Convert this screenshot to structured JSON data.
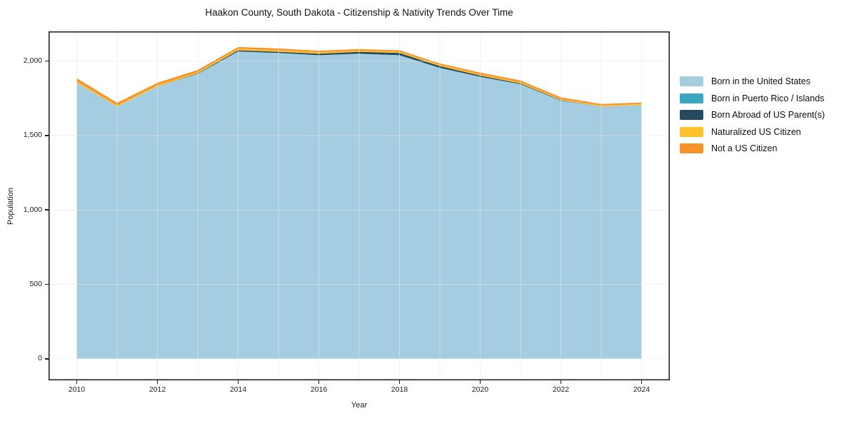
{
  "title": "Haakon County, South Dakota - Citizenship & Nativity Trends Over Time",
  "axes": {
    "x_label": "Year",
    "y_label": "Population",
    "x_ticks": [
      {
        "value": 2010,
        "label": "2010"
      },
      {
        "value": 2012,
        "label": "2012"
      },
      {
        "value": 2014,
        "label": "2014"
      },
      {
        "value": 2016,
        "label": "2016"
      },
      {
        "value": 2018,
        "label": "2018"
      },
      {
        "value": 2020,
        "label": "2020"
      },
      {
        "value": 2022,
        "label": "2022"
      },
      {
        "value": 2024,
        "label": "2024"
      }
    ],
    "y_ticks": [
      {
        "value": 0,
        "label": "0"
      },
      {
        "value": 500,
        "label": "500"
      },
      {
        "value": 1000,
        "label": "1,000"
      },
      {
        "value": 1500,
        "label": "1,500"
      },
      {
        "value": 2000,
        "label": "2,000"
      }
    ]
  },
  "chart_data": {
    "type": "area",
    "stacked": true,
    "title": "Haakon County, South Dakota - Citizenship & Nativity Trends Over Time",
    "xlabel": "Year",
    "ylabel": "Population",
    "x": [
      2010,
      2011,
      2012,
      2013,
      2014,
      2015,
      2016,
      2017,
      2018,
      2019,
      2020,
      2021,
      2022,
      2023,
      2024
    ],
    "xlim": [
      2009.3,
      2024.7
    ],
    "ylim": [
      -145,
      2200
    ],
    "grid": true,
    "legend_position": "right-outside",
    "frame_color": "#1a1a1a",
    "grid_color": "#e9e9e9",
    "series": [
      {
        "name": "Born in the United States",
        "color": "#a4cde2",
        "values": [
          1855,
          1695,
          1830,
          1915,
          2065,
          2055,
          2040,
          2050,
          2040,
          1955,
          1895,
          1845,
          1735,
          1695,
          1705
        ]
      },
      {
        "name": "Born in Puerto Rico / Islands",
        "color": "#3ba6bf",
        "values": [
          0,
          0,
          0,
          0,
          0,
          0,
          0,
          0,
          0,
          0,
          0,
          0,
          0,
          0,
          0
        ]
      },
      {
        "name": "Born Abroad of US Parent(s)",
        "color": "#254a5e",
        "values": [
          0,
          0,
          0,
          3,
          8,
          8,
          10,
          13,
          15,
          12,
          8,
          5,
          3,
          0,
          0
        ]
      },
      {
        "name": "Naturalized US Citizen",
        "color": "#fcc22c",
        "values": [
          10,
          8,
          8,
          8,
          10,
          10,
          10,
          8,
          8,
          8,
          8,
          8,
          7,
          7,
          7
        ]
      },
      {
        "name": "Not a US Citizen",
        "color": "#f79329",
        "values": [
          20,
          17,
          17,
          15,
          12,
          12,
          10,
          10,
          10,
          10,
          12,
          12,
          12,
          10,
          10
        ]
      }
    ]
  }
}
